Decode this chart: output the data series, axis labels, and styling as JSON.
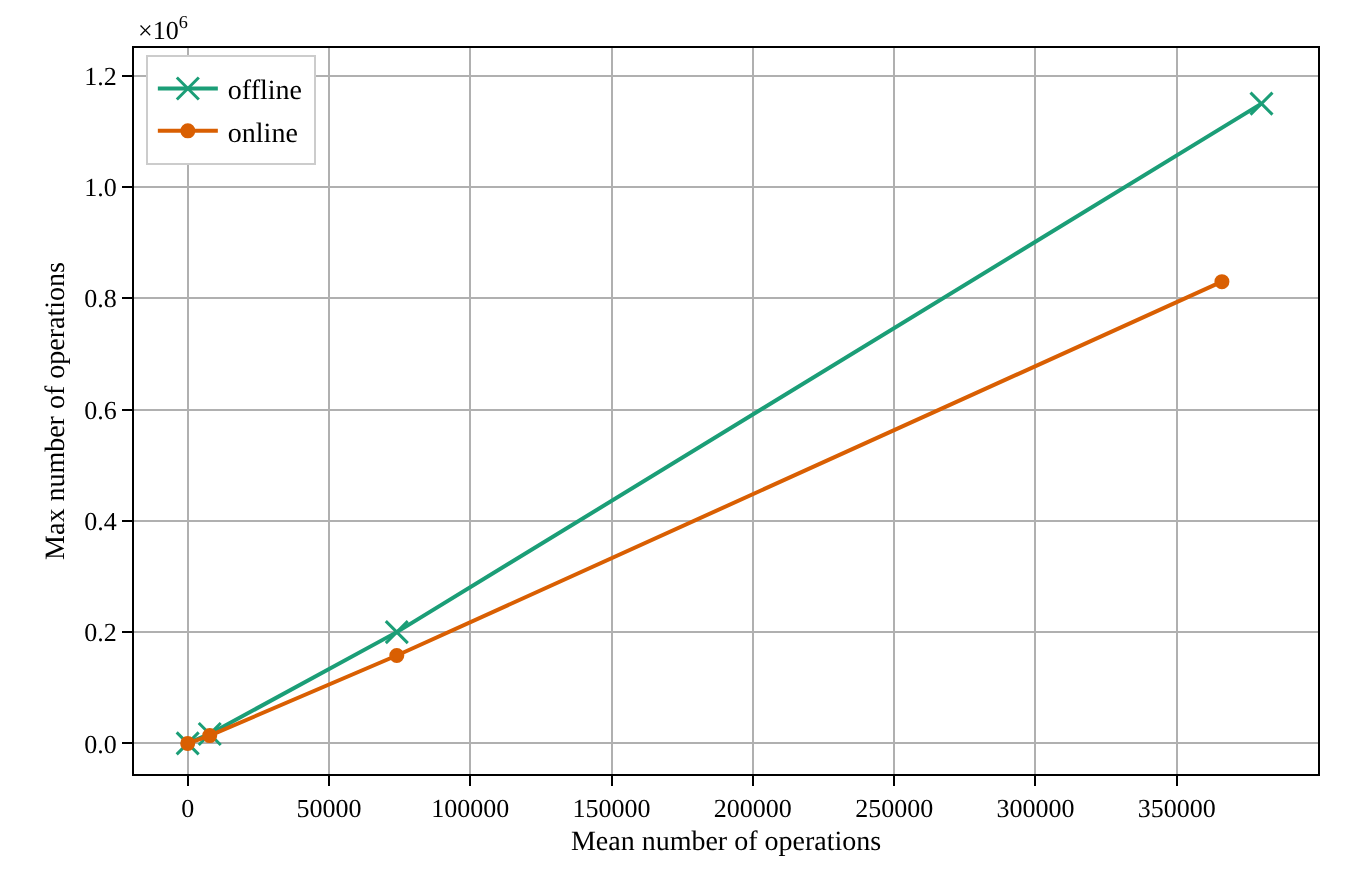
{
  "chart_data": {
    "type": "line",
    "xlabel": "Mean number of operations",
    "ylabel": "Max number of operations",
    "annotations": [
      "×10$^{6}$"
    ],
    "series": [
      {
        "name": "offline",
        "color": "#1b9e77",
        "marker": "cross",
        "x": [
          0,
          7800,
          74000,
          380000
        ],
        "values": [
          0,
          0.017,
          0.2,
          1.15
        ]
      },
      {
        "name": "online",
        "color": "#d95f02",
        "marker": "circle",
        "x": [
          0,
          7800,
          74000,
          366000
        ],
        "values": [
          0,
          0.014,
          0.158,
          0.83
        ]
      }
    ],
    "xlim": [
      -19000,
      400000
    ],
    "xticks": [
      0,
      50000,
      100000,
      150000,
      200000,
      250000,
      300000,
      350000
    ],
    "ylim": [
      -0.055,
      1.25
    ],
    "yticks": [
      {
        "value": 0,
        "label": "0.0"
      },
      0.2,
      0.4,
      0.6,
      0.8,
      {
        "value": 1,
        "label": "1.0"
      },
      1.2
    ],
    "grid": true,
    "legend": "top left",
    "line_style": "solid"
  }
}
